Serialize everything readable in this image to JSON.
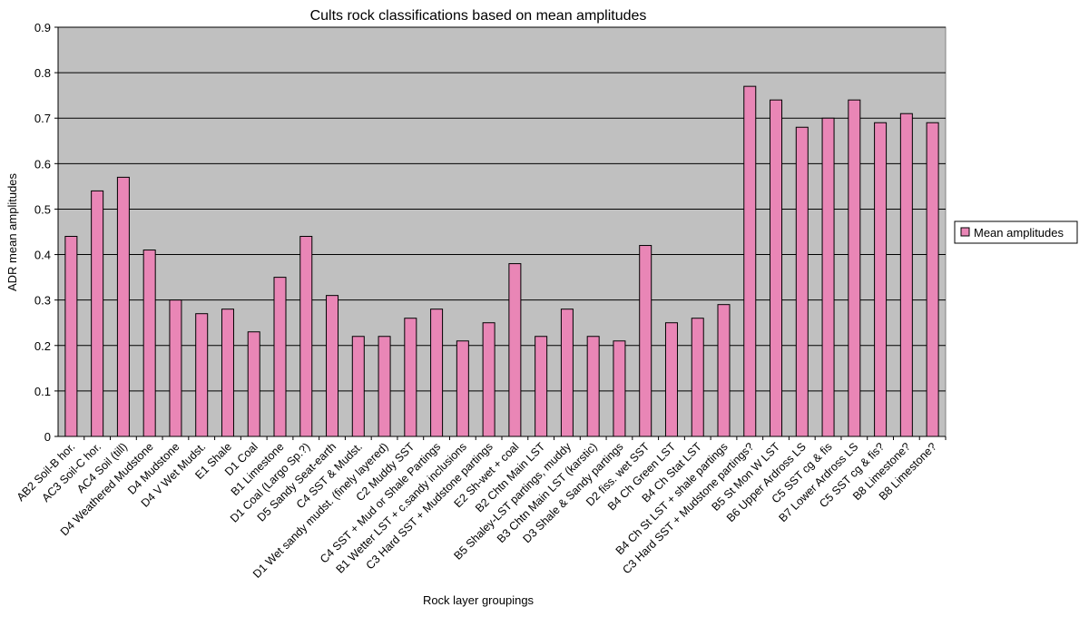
{
  "chart_data": {
    "type": "bar",
    "title": "Cults rock classifications based on mean amplitudes",
    "xlabel": "Rock layer groupings",
    "ylabel": "ADR mean amplitudes",
    "ylim": [
      0,
      0.9
    ],
    "yticks": [
      "0",
      "0.1",
      "0.2",
      "0.3",
      "0.4",
      "0.5",
      "0.6",
      "0.7",
      "0.8",
      "0.9"
    ],
    "grid": true,
    "legend_position": "right",
    "colors": {
      "plot_bg": "#c0c0c0",
      "bar_fill": "#e986b6",
      "bar_stroke": "#000000"
    },
    "categories": [
      "AB2  Soil-B hor.",
      "AC3  Soil-C hor.",
      "AC4  Soil (till)",
      "D4  Weathered Mudstone",
      "D4  Mudstone",
      "D4  V Wet Mudst.",
      "E1 Shale",
      "D1 Coal",
      "B1 Limestone",
      "D1 Coal (Largo Sp.?)",
      "D5 Sandy Seat-earth",
      "C4 SST & Mudst.",
      "D1 Wet sandy mudst. (finely layered)",
      "C2  Muddy SST",
      "C4 SST + Mud or Shale Partings",
      "B1  Wetter LST + c.sandy inclusions",
      "C3  Hard SST + Mudstone partings",
      "E2  Sh-wet + coal",
      "B2  Chtn Main LST",
      "B5  Shaley-LST partings, muddy",
      "B3  Chtn Main LST (karstic)",
      "D3   Shale & Sandy partings",
      "D2  fiss.  wet  SST",
      "B4   Ch Green LST",
      "B4   Ch Stat LST",
      "B4  Ch St LST + shale partings",
      "C3 Hard SST + Mudstone partings?",
      "B5  St Mon W LST",
      "B6  Upper Ardross LS",
      "C5  SST cg & fis",
      "B7  Lower Ardross LS",
      "C5  SST cg & fis?",
      "B8 Limestone?",
      "B8 Limestone?"
    ],
    "series": [
      {
        "name": "Mean amplitudes",
        "values": [
          0.44,
          0.54,
          0.57,
          0.41,
          0.3,
          0.27,
          0.28,
          0.23,
          0.35,
          0.44,
          0.31,
          0.22,
          0.22,
          0.26,
          0.28,
          0.21,
          0.25,
          0.38,
          0.22,
          0.28,
          0.22,
          0.21,
          0.42,
          0.25,
          0.26,
          0.29,
          0.77,
          0.74,
          0.68,
          0.7,
          0.74,
          0.69,
          0.71,
          0.69
        ]
      }
    ]
  }
}
